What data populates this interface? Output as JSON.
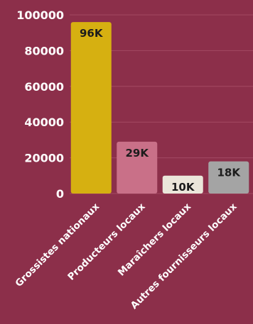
{
  "chart_data": {
    "type": "bar",
    "title": "",
    "xlabel": "",
    "ylabel": "",
    "categories": [
      "Grossistes nationaux",
      "Producteurs locaux",
      "Maraîchers locaux",
      "Autres fournisseurs locaux"
    ],
    "values": [
      96000,
      29000,
      10000,
      18000
    ],
    "value_labels": [
      "96K",
      "29K",
      "10K",
      "18K"
    ],
    "colors": [
      "#d6b011",
      "#c97088",
      "#ebe6da",
      "#a4a4a4"
    ],
    "yticks": [
      0,
      20000,
      40000,
      60000,
      80000,
      100000
    ],
    "ytick_labels": [
      "0",
      "20000",
      "40000",
      "60000",
      "80000",
      "100000"
    ],
    "ylim": [
      0,
      100000
    ],
    "grid": true,
    "background": "#8c2f4a"
  }
}
